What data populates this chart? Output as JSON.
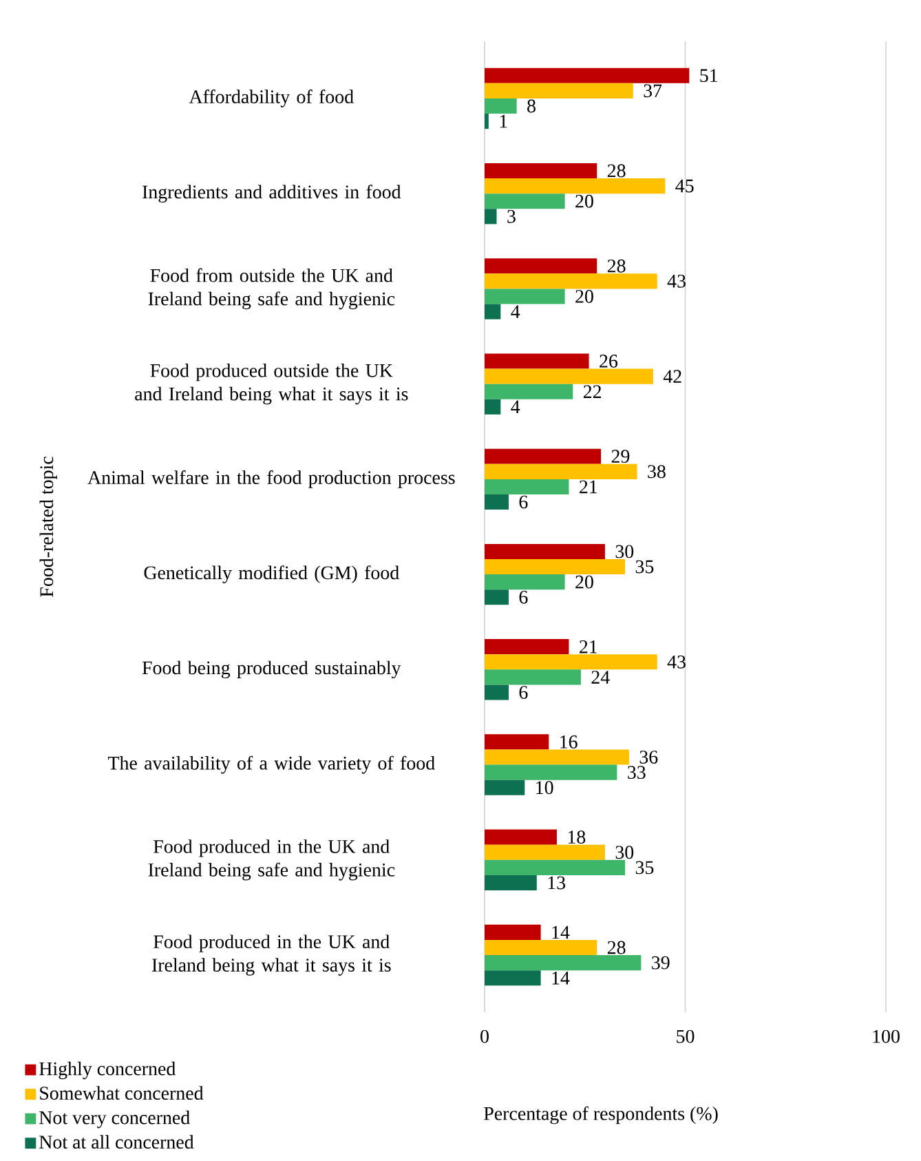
{
  "chart_data": {
    "type": "bar",
    "orientation": "horizontal",
    "categories": [
      "Affordability of food",
      "Ingredients and additives in food",
      "Food from outside the UK and Ireland being safe and hygienic",
      "Food produced outside the UK and Ireland being what it says it is",
      "Animal welfare in the food production process",
      "Genetically modified (GM) food",
      "Food being produced sustainably",
      "The availability of a wide variety of food",
      "Food produced in the UK and Ireland being safe and hygienic",
      "Food produced in the UK and Ireland being what it says it is"
    ],
    "series": [
      {
        "name": "Highly concerned",
        "color": "#c00000",
        "values": [
          51,
          28,
          28,
          26,
          29,
          30,
          21,
          16,
          18,
          14
        ]
      },
      {
        "name": "Somewhat concerned",
        "color": "#ffc000",
        "values": [
          37,
          45,
          43,
          42,
          38,
          35,
          43,
          36,
          30,
          28
        ]
      },
      {
        "name": "Not very concerned",
        "color": "#3fb56a",
        "values": [
          8,
          20,
          20,
          22,
          21,
          20,
          24,
          33,
          35,
          39
        ]
      },
      {
        "name": "Not at all concerned",
        "color": "#0e7052",
        "values": [
          1,
          3,
          4,
          4,
          6,
          6,
          6,
          10,
          13,
          14
        ]
      }
    ],
    "xlabel": "Percentage of respondents (%)",
    "ylabel": "Food-related topic",
    "xlim": [
      0,
      100
    ],
    "xticks": [
      0,
      50,
      100
    ],
    "grid": "x",
    "legend": "bottom left",
    "data_labels": true
  }
}
